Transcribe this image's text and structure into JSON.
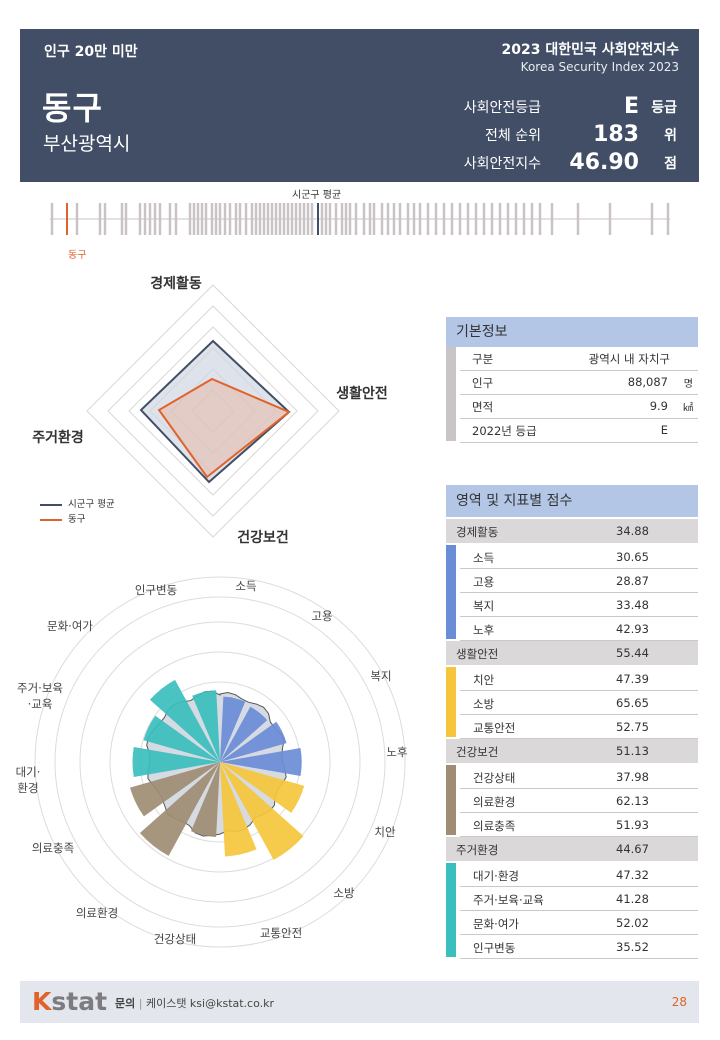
{
  "header": {
    "category": "인구 20만 미만",
    "name": "동구",
    "city": "부산광역시",
    "report_title": "2023 대한민국 사회안전지수",
    "report_subtitle": "Korea Security Index 2023",
    "grade_label": "사회안전등급",
    "grade_value": "E",
    "grade_unit": "등급",
    "rank_label": "전체 순위",
    "rank_value": "183",
    "rank_unit": "위",
    "index_label": "사회안전지수",
    "index_value": "46.90",
    "index_unit": "점"
  },
  "rank_strip": {
    "avg_label": "시군구 평균",
    "self_label": "동구",
    "colors": {
      "tick": "#c9c3c5",
      "avg": "#414e65",
      "self": "#e0632b"
    }
  },
  "radar": {
    "axes": [
      "경제활동",
      "생활안전",
      "건강보건",
      "주거환경"
    ],
    "legend_avg": "시군구 평균",
    "legend_self": "동구",
    "avg_color": "#414e65",
    "self_color": "#e0632b"
  },
  "rose": {
    "labels": [
      "소득",
      "고용",
      "복지",
      "노후",
      "치안",
      "소방",
      "교통안전",
      "건강상태",
      "의료환경",
      "의료충족",
      "대기·\n환경",
      "주거·보육\n·교육",
      "문화·여가",
      "인구변동"
    ],
    "colors": {
      "economy": "#6b8cd6",
      "safety": "#f5c63b",
      "health": "#9e8d73",
      "housing": "#3abfbd",
      "avg_fill": "#d6dae3"
    }
  },
  "basic_info": {
    "title": "기본정보",
    "rows": [
      {
        "key": "구분",
        "value": "광역시 내 자치구",
        "unit": ""
      },
      {
        "key": "인구",
        "value": "88,087",
        "unit": "명"
      },
      {
        "key": "면적",
        "value": "9.9",
        "unit": "㎢"
      },
      {
        "key": "2022년 등급",
        "value": "E",
        "unit": ""
      }
    ]
  },
  "scores": {
    "title": "영역 및 지표별 점수",
    "domains": [
      {
        "name": "경제활동",
        "score": "34.88",
        "color": "#6b8cd6",
        "items": [
          {
            "name": "소득",
            "score": "30.65"
          },
          {
            "name": "고용",
            "score": "28.87"
          },
          {
            "name": "복지",
            "score": "33.48"
          },
          {
            "name": "노후",
            "score": "42.93"
          }
        ]
      },
      {
        "name": "생활안전",
        "score": "55.44",
        "color": "#f5c63b",
        "items": [
          {
            "name": "치안",
            "score": "47.39"
          },
          {
            "name": "소방",
            "score": "65.65"
          },
          {
            "name": "교통안전",
            "score": "52.75"
          }
        ]
      },
      {
        "name": "건강보건",
        "score": "51.13",
        "color": "#9e8d73",
        "items": [
          {
            "name": "건강상태",
            "score": "37.98"
          },
          {
            "name": "의료환경",
            "score": "62.13"
          },
          {
            "name": "의료충족",
            "score": "51.93"
          }
        ]
      },
      {
        "name": "주거환경",
        "score": "44.67",
        "color": "#3abfbd",
        "items": [
          {
            "name": "대기·환경",
            "score": "47.32"
          },
          {
            "name": "주거·보육·교육",
            "score": "41.28"
          },
          {
            "name": "문화·여가",
            "score": "52.02"
          },
          {
            "name": "인구변동",
            "score": "35.52"
          }
        ]
      }
    ]
  },
  "footer": {
    "logo_k": "K",
    "logo_rest": "stat",
    "contact_label": "문의",
    "contact_text": "케이스탯 ksi@kstat.co.kr",
    "page": "28"
  }
}
